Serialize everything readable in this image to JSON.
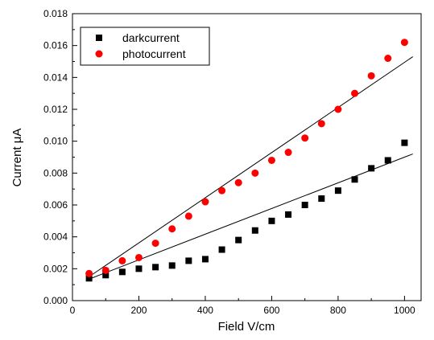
{
  "chart_data": {
    "type": "scatter",
    "xlabel": "Field V/cm",
    "ylabel": "Current μA",
    "xlim": [
      0,
      1050
    ],
    "ylim": [
      0,
      0.018
    ],
    "x_ticks": [
      "0",
      "200",
      "400",
      "600",
      "800",
      "1000"
    ],
    "y_ticks": [
      "0.000",
      "0.002",
      "0.004",
      "0.006",
      "0.008",
      "0.010",
      "0.012",
      "0.014",
      "0.016",
      "0.018"
    ],
    "grid": false,
    "legend_position": "top-left",
    "series": [
      {
        "name": "darkcurrent",
        "marker": "square",
        "color": "#000000",
        "x": [
          50,
          100,
          150,
          200,
          250,
          300,
          350,
          400,
          450,
          500,
          550,
          600,
          650,
          700,
          750,
          800,
          850,
          900,
          950,
          1000
        ],
        "y": [
          0.0014,
          0.0016,
          0.0018,
          0.002,
          0.0021,
          0.0022,
          0.0025,
          0.0026,
          0.0032,
          0.0038,
          0.0044,
          0.005,
          0.0054,
          0.006,
          0.0064,
          0.0069,
          0.0076,
          0.0083,
          0.0088,
          0.0099
        ],
        "fit": {
          "x": [
            50,
            1025
          ],
          "y": [
            0.00135,
            0.0092
          ]
        }
      },
      {
        "name": "photocurrent",
        "marker": "circle",
        "color": "#ff0000",
        "x": [
          50,
          100,
          150,
          200,
          250,
          300,
          350,
          400,
          450,
          500,
          550,
          600,
          650,
          700,
          750,
          800,
          850,
          900,
          950,
          1000
        ],
        "y": [
          0.0017,
          0.0019,
          0.0025,
          0.0027,
          0.0036,
          0.0045,
          0.0053,
          0.0062,
          0.0069,
          0.0074,
          0.008,
          0.0088,
          0.0093,
          0.0102,
          0.0111,
          0.012,
          0.013,
          0.0141,
          0.0152,
          0.0162
        ],
        "fit": {
          "x": [
            50,
            1025
          ],
          "y": [
            0.0015,
            0.0153
          ]
        }
      }
    ]
  }
}
